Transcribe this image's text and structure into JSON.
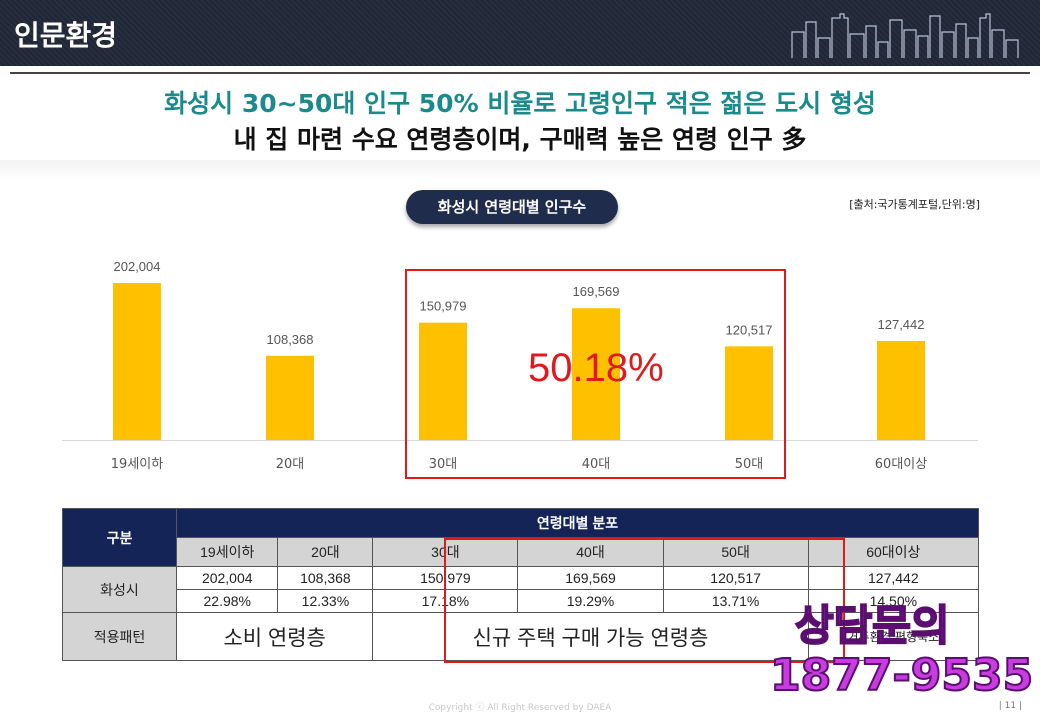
{
  "header": {
    "title": "인문환경"
  },
  "headline": {
    "line1": "화성시 30~50대 인구 50% 비율로 고령인구 적은 젊은 도시 형성",
    "line2": "내 집 마련 수요 연령층이며, 구매력 높은 연령 인구 多"
  },
  "chart_title": "화성시 연령대별 인구수",
  "source_note": "[출처:국가통계포털,단위:명]",
  "highlight_pct": "50.18%",
  "chart_data": {
    "type": "bar",
    "categories": [
      "19세이하",
      "20대",
      "30대",
      "40대",
      "50대",
      "60대이상"
    ],
    "values": [
      202004,
      108368,
      150979,
      169569,
      120517,
      127442
    ],
    "value_labels": [
      "202,004",
      "108,368",
      "150,979",
      "169,569",
      "120,517",
      "127,442"
    ],
    "bar_color": "#ffc000",
    "grid": false
  },
  "table": {
    "col_header": "구분",
    "group_header": "연령대별 분포",
    "age_groups": [
      "19세이하",
      "20대",
      "30대",
      "40대",
      "50대",
      "60대이상"
    ],
    "row_label": "화성시",
    "counts": [
      "202,004",
      "108,368",
      "150,979",
      "169,569",
      "120,517",
      "127,442"
    ],
    "percents": [
      "22.98%",
      "12.33%",
      "17.18%",
      "19.29%",
      "13.71%",
      "14.50%"
    ],
    "pattern_label": "적용패턴",
    "pattern_consume": "소비 연령층",
    "pattern_new": "신규 주택 구매 가능 연령층",
    "pattern_old": "거주환경 평형축소"
  },
  "overlay": {
    "line1": "상담문의",
    "line2": "1877-9535"
  },
  "footer": {
    "copyright": "Copyright ⓒ All Right Reserved by DAEA",
    "page": "| 11 |"
  },
  "colors": {
    "header_bg": "#1f2636",
    "headline_teal": "#1b8a8a",
    "table_header": "#142457",
    "accent_red": "#e0191c"
  }
}
